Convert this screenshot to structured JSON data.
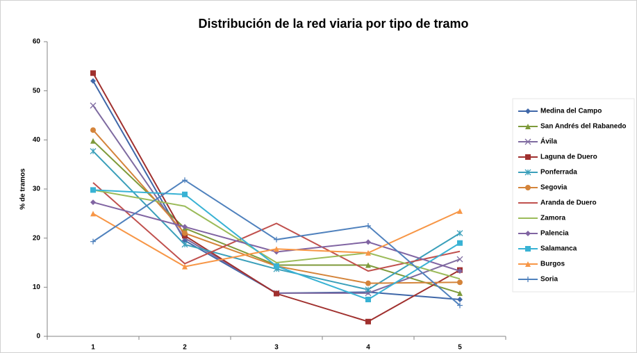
{
  "chart_data": {
    "type": "line",
    "title": "Distribución de la red viaria por tipo de tramo",
    "y_label": "% de tramos",
    "categories": [
      "1",
      "2",
      "3",
      "4",
      "5"
    ],
    "ylim": [
      0,
      60
    ],
    "yticks": [
      0,
      10,
      20,
      30,
      40,
      50,
      60
    ],
    "grid": false,
    "legend": "right",
    "series": [
      {
        "name": "Medina del Campo",
        "color": "#3f67a8",
        "marker": "diamond",
        "values": [
          52,
          19.5,
          8.8,
          9,
          7.5
        ]
      },
      {
        "name": "San Andrés del Rabanedo",
        "color": "#7d9a3a",
        "marker": "triangle",
        "values": [
          39.8,
          22,
          14.5,
          14.5,
          8.8
        ]
      },
      {
        "name": "Ávila",
        "color": "#7e6aa0",
        "marker": "x",
        "values": [
          47,
          20,
          8.8,
          8.8,
          15.7
        ]
      },
      {
        "name": "Laguna de Duero",
        "color": "#a0302e",
        "marker": "square",
        "values": [
          53.6,
          20.5,
          8.7,
          3,
          13.5
        ]
      },
      {
        "name": "Ponferrada",
        "color": "#3a9fba",
        "marker": "asterisk",
        "values": [
          37.7,
          18.7,
          13.7,
          9.5,
          21
        ]
      },
      {
        "name": "Segovia",
        "color": "#d4843a",
        "marker": "circle",
        "values": [
          42,
          21,
          14.3,
          10.8,
          11
        ]
      },
      {
        "name": "Aranda de Duero",
        "color": "#c0504d",
        "marker": "none",
        "values": [
          31.3,
          14.8,
          23,
          13.3,
          17.3
        ]
      },
      {
        "name": "Zamora",
        "color": "#9bbb59",
        "marker": "none",
        "values": [
          29.8,
          26.5,
          15,
          17,
          11.7
        ]
      },
      {
        "name": "Palencia",
        "color": "#8064a2",
        "marker": "diamond",
        "values": [
          27.3,
          22.3,
          17.2,
          19.2,
          13.3
        ]
      },
      {
        "name": "Salamanca",
        "color": "#38b2d4",
        "marker": "square",
        "values": [
          29.8,
          28.9,
          14.3,
          7.5,
          19
        ]
      },
      {
        "name": "Burgos",
        "color": "#f79646",
        "marker": "triangle",
        "values": [
          25,
          14.2,
          17.8,
          17,
          25.5
        ]
      },
      {
        "name": "Soria",
        "color": "#4f81bd",
        "marker": "plus",
        "values": [
          19.3,
          31.8,
          19.7,
          22.5,
          6.3
        ]
      }
    ]
  }
}
